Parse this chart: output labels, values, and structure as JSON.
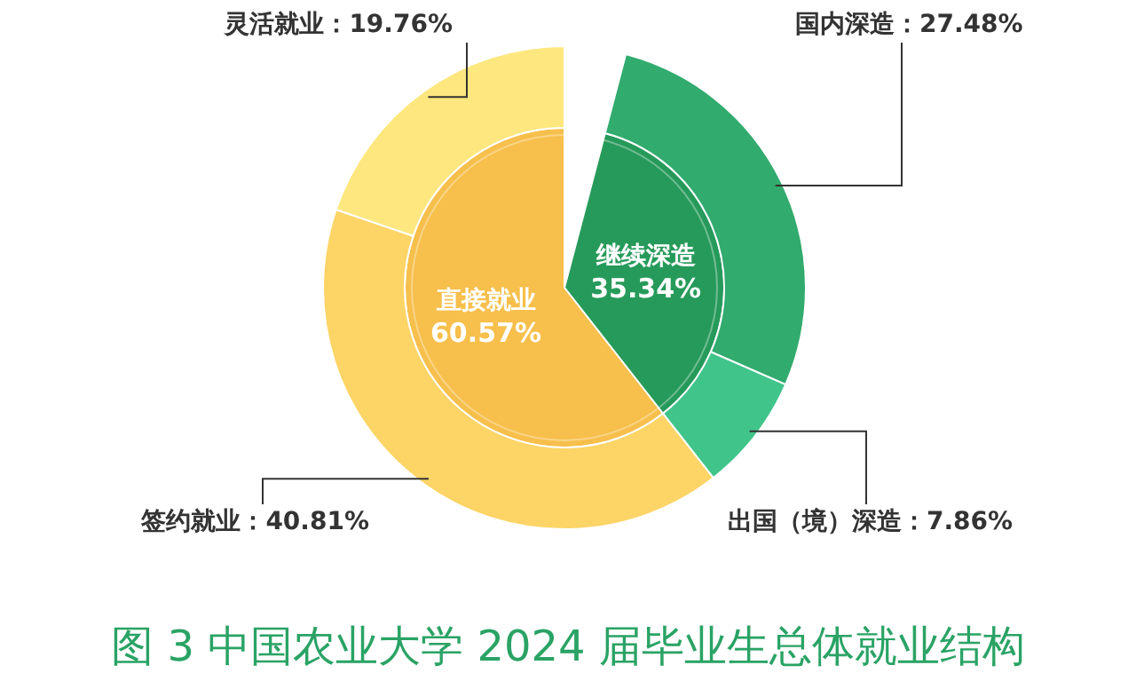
{
  "chart_data": [
    {
      "type": "pie",
      "title": "图 3 中国农业大学 2024 届毕业生总体就业结构",
      "categories": [
        "继续深造",
        "直接就业"
      ],
      "values": [
        35.34,
        60.57
      ],
      "colors": [
        "#269a5a",
        "#f7bf4b"
      ],
      "value_labels": [
        "35.34%",
        "60.57%"
      ]
    },
    {
      "type": "donut",
      "categories": [
        "国内深造",
        "出国（境）深造",
        "签约就业",
        "灵活就业"
      ],
      "values": [
        27.48,
        7.86,
        40.81,
        19.76
      ],
      "colors": [
        "#31ab6e",
        "#40c48a",
        "#fdd466",
        "#fee77e"
      ],
      "value_labels": [
        "：27.48%",
        "：7.86%",
        "：40.81%",
        "：19.76%"
      ]
    }
  ]
}
